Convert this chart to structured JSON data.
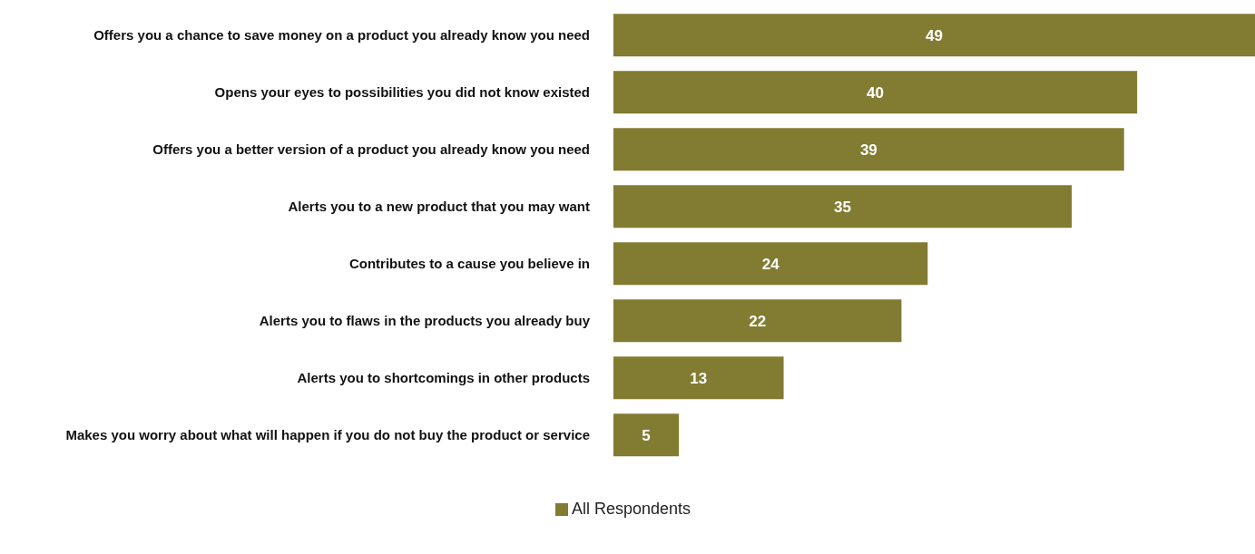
{
  "chart_data": {
    "type": "bar",
    "orientation": "horizontal",
    "categories": [
      "Offers you a chance to save money on a product you already know you need",
      "Opens your eyes to possibilities you did not know existed",
      "Offers you a better version of a product you already know you need",
      "Alerts you to a new product that you may want",
      "Contributes to a cause you believe in",
      "Alerts you to flaws in the products you already buy",
      "Alerts you to shortcomings in other products",
      "Makes you worry about what will happen if you do not buy the product or service"
    ],
    "series": [
      {
        "name": "All Respondents",
        "color": "#827b32",
        "values": [
          49,
          40,
          39,
          35,
          24,
          22,
          13,
          5
        ]
      }
    ],
    "data_labels": true,
    "legend": "bottom",
    "grid": false
  }
}
